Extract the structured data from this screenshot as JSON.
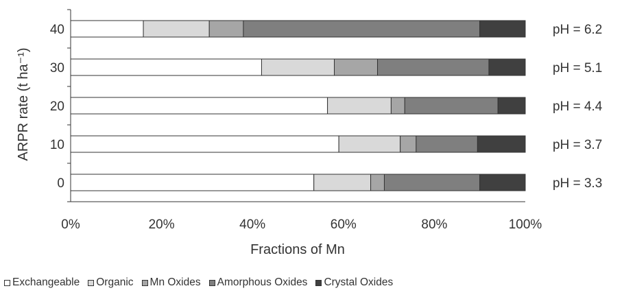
{
  "chart_data": {
    "type": "bar",
    "orientation": "horizontal",
    "stacked": true,
    "percent_stacked": true,
    "title": "",
    "xlabel": "Fractions of Mn",
    "ylabel": "ARPR rate (t ha⁻¹)",
    "xlim": [
      0,
      100
    ],
    "x_ticks": [
      "0%",
      "20%",
      "40%",
      "60%",
      "80%",
      "100%"
    ],
    "grid": false,
    "legend_position": "bottom",
    "categories": [
      "40",
      "30",
      "20",
      "10",
      "0"
    ],
    "bar_annotations": [
      "pH = 6.2",
      "pH = 5.1",
      "pH = 4.4",
      "pH = 3.7",
      "pH = 3.3"
    ],
    "series": [
      {
        "name": "Exchangeable",
        "color": "#ffffff",
        "values": [
          16,
          42,
          56.5,
          59,
          53.5
        ]
      },
      {
        "name": "Organic",
        "color": "#d9d9d9",
        "values": [
          14.5,
          16,
          14,
          13.5,
          12.5
        ]
      },
      {
        "name": "Mn Oxides",
        "color": "#a6a6a6",
        "values": [
          7.5,
          9.5,
          3,
          3.5,
          3
        ]
      },
      {
        "name": "Amorphous Oxides",
        "color": "#7f7f7f",
        "values": [
          52,
          24.5,
          20.5,
          13.5,
          21
        ]
      },
      {
        "name": "Crystal Oxides",
        "color": "#404040",
        "values": [
          10,
          8,
          6,
          10.5,
          10
        ]
      }
    ]
  }
}
